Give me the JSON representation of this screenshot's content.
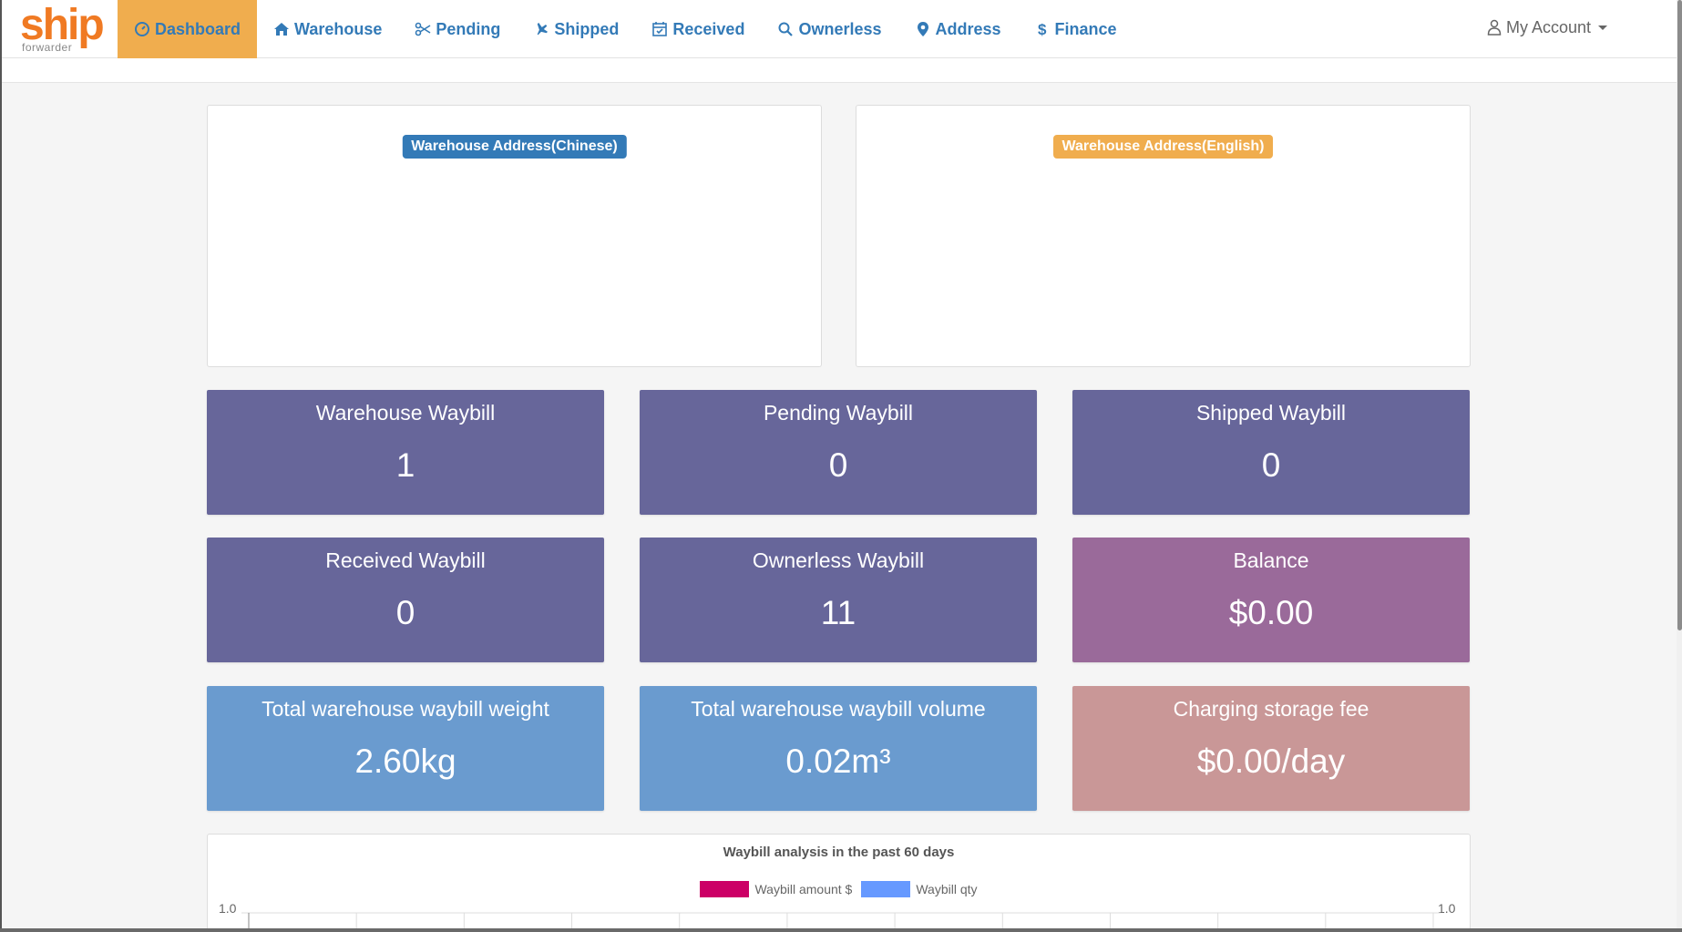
{
  "brand": {
    "logo_text": "ship",
    "logo_sub": "forwarder",
    "color": "#f07a23"
  },
  "nav": {
    "items": [
      {
        "label": "Dashboard",
        "icon": "dashboard-icon",
        "active": true
      },
      {
        "label": "Warehouse",
        "icon": "home-icon"
      },
      {
        "label": "Pending",
        "icon": "scissors-icon"
      },
      {
        "label": "Shipped",
        "icon": "plane-icon"
      },
      {
        "label": "Received",
        "icon": "calendar-check-icon"
      },
      {
        "label": "Ownerless",
        "icon": "search-icon"
      },
      {
        "label": "Address",
        "icon": "map-marker-icon"
      },
      {
        "label": "Finance",
        "icon": "dollar-icon"
      }
    ],
    "account_label": "My Account"
  },
  "addresses": {
    "chinese_label": "Warehouse Address(Chinese)",
    "english_label": "Warehouse Address(English)"
  },
  "stats": {
    "warehouse_waybill": {
      "title": "Warehouse Waybill",
      "value": "1"
    },
    "pending_waybill": {
      "title": "Pending Waybill",
      "value": "0"
    },
    "shipped_waybill": {
      "title": "Shipped Waybill",
      "value": "0"
    },
    "received_waybill": {
      "title": "Received Waybill",
      "value": "0"
    },
    "ownerless_waybill": {
      "title": "Ownerless Waybill",
      "value": "11"
    },
    "balance": {
      "title": "Balance",
      "value": "$0.00"
    },
    "total_weight": {
      "title": "Total warehouse waybill weight",
      "value": "2.60kg"
    },
    "total_volume": {
      "title": "Total warehouse waybill volume",
      "value": "0.02m³"
    },
    "storage_fee": {
      "title": "Charging storage fee",
      "value": "$0.00/day"
    }
  },
  "colors": {
    "purple_tile": "#67669a",
    "balance_tile": "#9a6a9a",
    "blue_tile": "#6a9bcf",
    "fee_tile": "#c99797",
    "active_nav": "#f0ad4e",
    "link": "#337ab7"
  },
  "chart_data": {
    "type": "bar",
    "title": "Waybill analysis in the past 60 days",
    "series": [
      {
        "name": "Waybill amount $",
        "color": "#cc0066",
        "values": []
      },
      {
        "name": "Waybill qty",
        "color": "#6699ff",
        "values": []
      }
    ],
    "y_left_tick": "1.0",
    "y_right_tick": "1.0",
    "grid": true,
    "legend": "top-center"
  }
}
